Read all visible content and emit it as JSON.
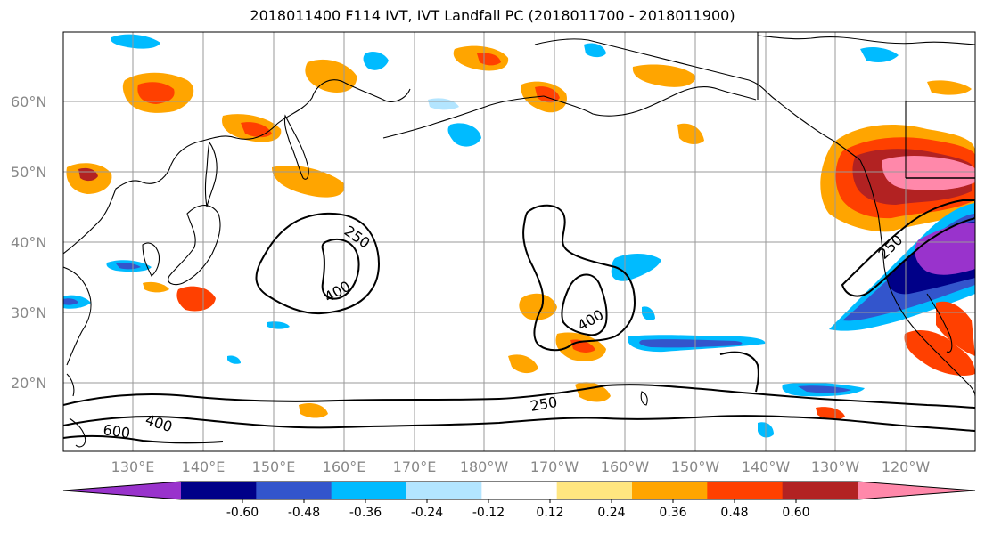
{
  "title": "2018011400 F114 IVT, IVT Landfall PC (2018011700 - 2018011900)",
  "lat_labels": [
    "60°N",
    "50°N",
    "40°N",
    "30°N",
    "20°N"
  ],
  "lon_labels": [
    "130°E",
    "140°E",
    "150°E",
    "160°E",
    "170°E",
    "180°W",
    "170°W",
    "160°W",
    "150°W",
    "140°W",
    "130°W",
    "120°W"
  ],
  "contour_labels": [
    "250",
    "400",
    "400",
    "250",
    "400",
    "600",
    "250"
  ],
  "colorbar": {
    "colors": [
      "#9933cc",
      "#000088",
      "#3355cc",
      "#00bbff",
      "#b3e5ff",
      "#ffffff",
      "#ffe680",
      "#ffa500",
      "#ff4000",
      "#b22222",
      "#ff88aa"
    ],
    "tick_labels": [
      "-0.60",
      "-0.48",
      "-0.36",
      "-0.24",
      "-0.12",
      "0.12",
      "0.24",
      "0.36",
      "0.48",
      "0.60"
    ]
  },
  "legend_colors": {
    "coast": "#000000",
    "grid": "#999999",
    "contour": "#000000"
  }
}
